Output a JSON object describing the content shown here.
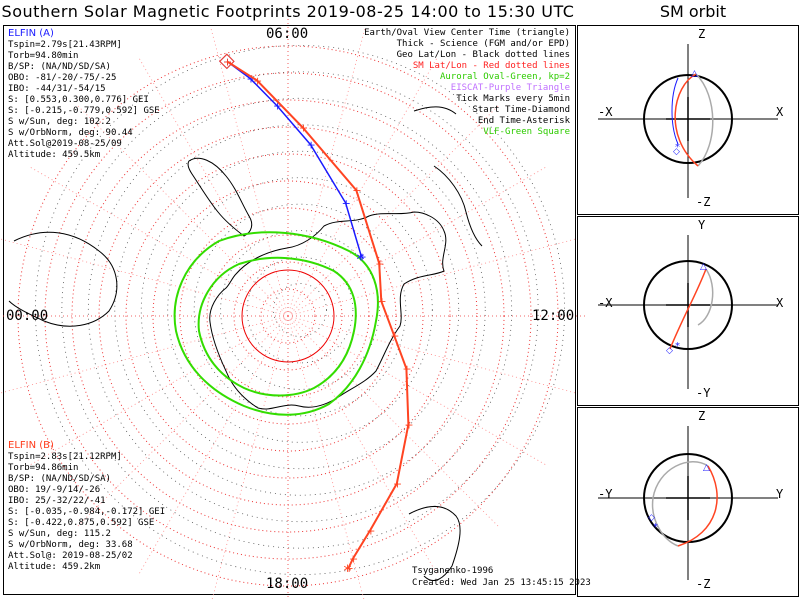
{
  "title": "Southern Solar Magnetic Footprints 2019-08-25 14:00 to 15:30 UTC",
  "subtitle": "SM orbit",
  "clock": {
    "top": "06:00",
    "left": "00:00",
    "right": "12:00",
    "bottom": "18:00"
  },
  "elfin_a": {
    "name": "ELFIN (A)",
    "lines": [
      "Tspin=2.79s[21.43RPM]",
      "Torb=94.80min",
      "B/SP: (NA/ND/SD/SA)",
      "OBO: -81/-20/-75/-25",
      "IBO: -44/31/-54/15",
      "S: [0.553,0.300,0.776] GEI",
      "S: [-0.215,-0.779,0.592] GSE",
      "S w/Sun, deg: 102.2",
      "S w/OrbNorm, deg: 90.44",
      "Att.Sol@2019-08-25/09",
      "Altitude: 459.5km"
    ]
  },
  "elfin_b": {
    "name": "ELFIN (B)",
    "lines": [
      "Tspin=2.83s[21.12RPM]",
      "Torb=94.86min",
      "B/SP: (NA/ND/SD/SA)",
      "OBO: 19/-9/14/-26",
      "IBO: 25/-32/22/-41",
      "S: [-0.035,-0.984,-0.172] GEI",
      "S: [-0.422,0.875,0.592] GSE",
      "S w/Sun, deg: 115.2",
      "S w/OrbNorm, deg: 33.68",
      "Att.Sol@: 2019-08-25/02",
      "Altitude: 459.2km"
    ]
  },
  "legend": [
    {
      "text": "Earth/Oval View Center Time (triangle)",
      "color": "#000000"
    },
    {
      "text": "Thick - Science (FGM and/or EPD)",
      "color": "#000000"
    },
    {
      "text": "Geo Lat/Lon - Black dotted lines",
      "color": "#000000"
    },
    {
      "text": "SM Lat/Lon - Red dotted lines",
      "color": "#ff2020"
    },
    {
      "text": "Auroral Oval-Green, kp=2",
      "color": "#2ecc00"
    },
    {
      "text": "EISCAT-Purple Triangle",
      "color": "#c070ff"
    },
    {
      "text": "Tick Marks every 5min",
      "color": "#000000"
    },
    {
      "text": "Start Time-Diamond",
      "color": "#000000"
    },
    {
      "text": "End Time-Asterisk",
      "color": "#000000"
    },
    {
      "text": "VLF-Green Square",
      "color": "#2ecc00"
    }
  ],
  "model": "Tsyganenko-1996",
  "created": "Created: Wed Jan 25 13:45:15 2023",
  "orbit_panels": [
    {
      "top": "Z",
      "bottom": "-Z",
      "left": "-X",
      "right": "X"
    },
    {
      "top": "Y",
      "bottom": "-Y",
      "left": "-X",
      "right": "X"
    },
    {
      "top": "Z",
      "bottom": "-Z",
      "left": "-Y",
      "right": "Y"
    }
  ],
  "chart_data": {
    "type": "scatter",
    "title": "Southern Solar Magnetic Footprints 2019-08-25 14:00 to 15:30 UTC",
    "projection": "polar, SM coordinates, magnetic local time on azimuth",
    "center_mlat_deg": -90,
    "outer_mlat_deg": -40,
    "ring_step_deg": 5,
    "axis_labels": [
      "06:00",
      "12:00",
      "18:00",
      "00:00"
    ],
    "series": [
      {
        "name": "ELFIN (A)",
        "color": "#1a1aff",
        "mlt_h": [
          5.1,
          5.4,
          5.8,
          6.5,
          7.8,
          9.4
        ],
        "mlat_deg": [
          -41.5,
          -45.5,
          -51.0,
          -58.0,
          -66.5,
          -72.5
        ]
      },
      {
        "name": "ELFIN (B)",
        "color": "#ff4422",
        "mlt_h": [
          5.1,
          5.5,
          6.3,
          7.9,
          10.0,
          11.4,
          12.7,
          13.6,
          14.8,
          15.8,
          16.6,
          17.0,
          17.1
        ],
        "mlat_deg": [
          -41.5,
          -46.0,
          -55.0,
          -63.5,
          -70.5,
          -72.5,
          -70.0,
          -66.0,
          -60.0,
          -53.0,
          -47.5,
          -43.5,
          -42.0
        ]
      }
    ],
    "auroral_oval_kp": 2
  }
}
